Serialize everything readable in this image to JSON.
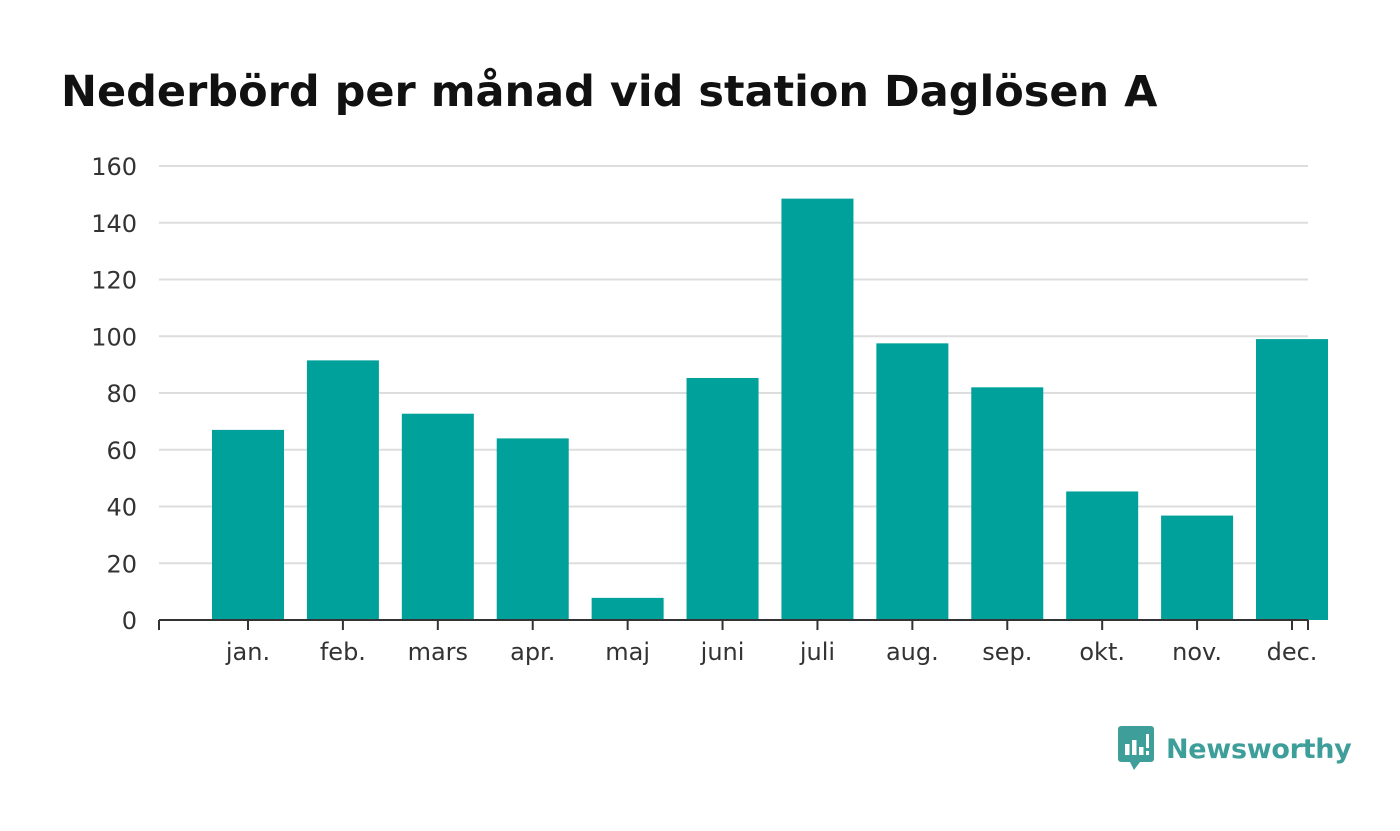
{
  "chart_data": {
    "type": "bar",
    "title": "Nederbörd per månad vid station Daglösen A",
    "xlabel": "",
    "ylabel": "",
    "categories": [
      "jan.",
      "feb.",
      "mars",
      "apr.",
      "maj",
      "juni",
      "juli",
      "aug.",
      "sep.",
      "okt.",
      "nov.",
      "dec."
    ],
    "values": [
      67,
      91.5,
      72.7,
      64,
      7.8,
      85.3,
      148.5,
      97.5,
      82,
      45.3,
      36.8,
      99
    ],
    "ylim": [
      0,
      160
    ],
    "yticks": [
      0,
      20,
      40,
      60,
      80,
      100,
      120,
      140,
      160
    ],
    "grid": true,
    "legend": "none",
    "bar_color": "#00a19a"
  },
  "brand": {
    "name": "Newsworthy",
    "logo_icon": "newsworthy-logo-icon",
    "color": "#3d9e9a"
  }
}
